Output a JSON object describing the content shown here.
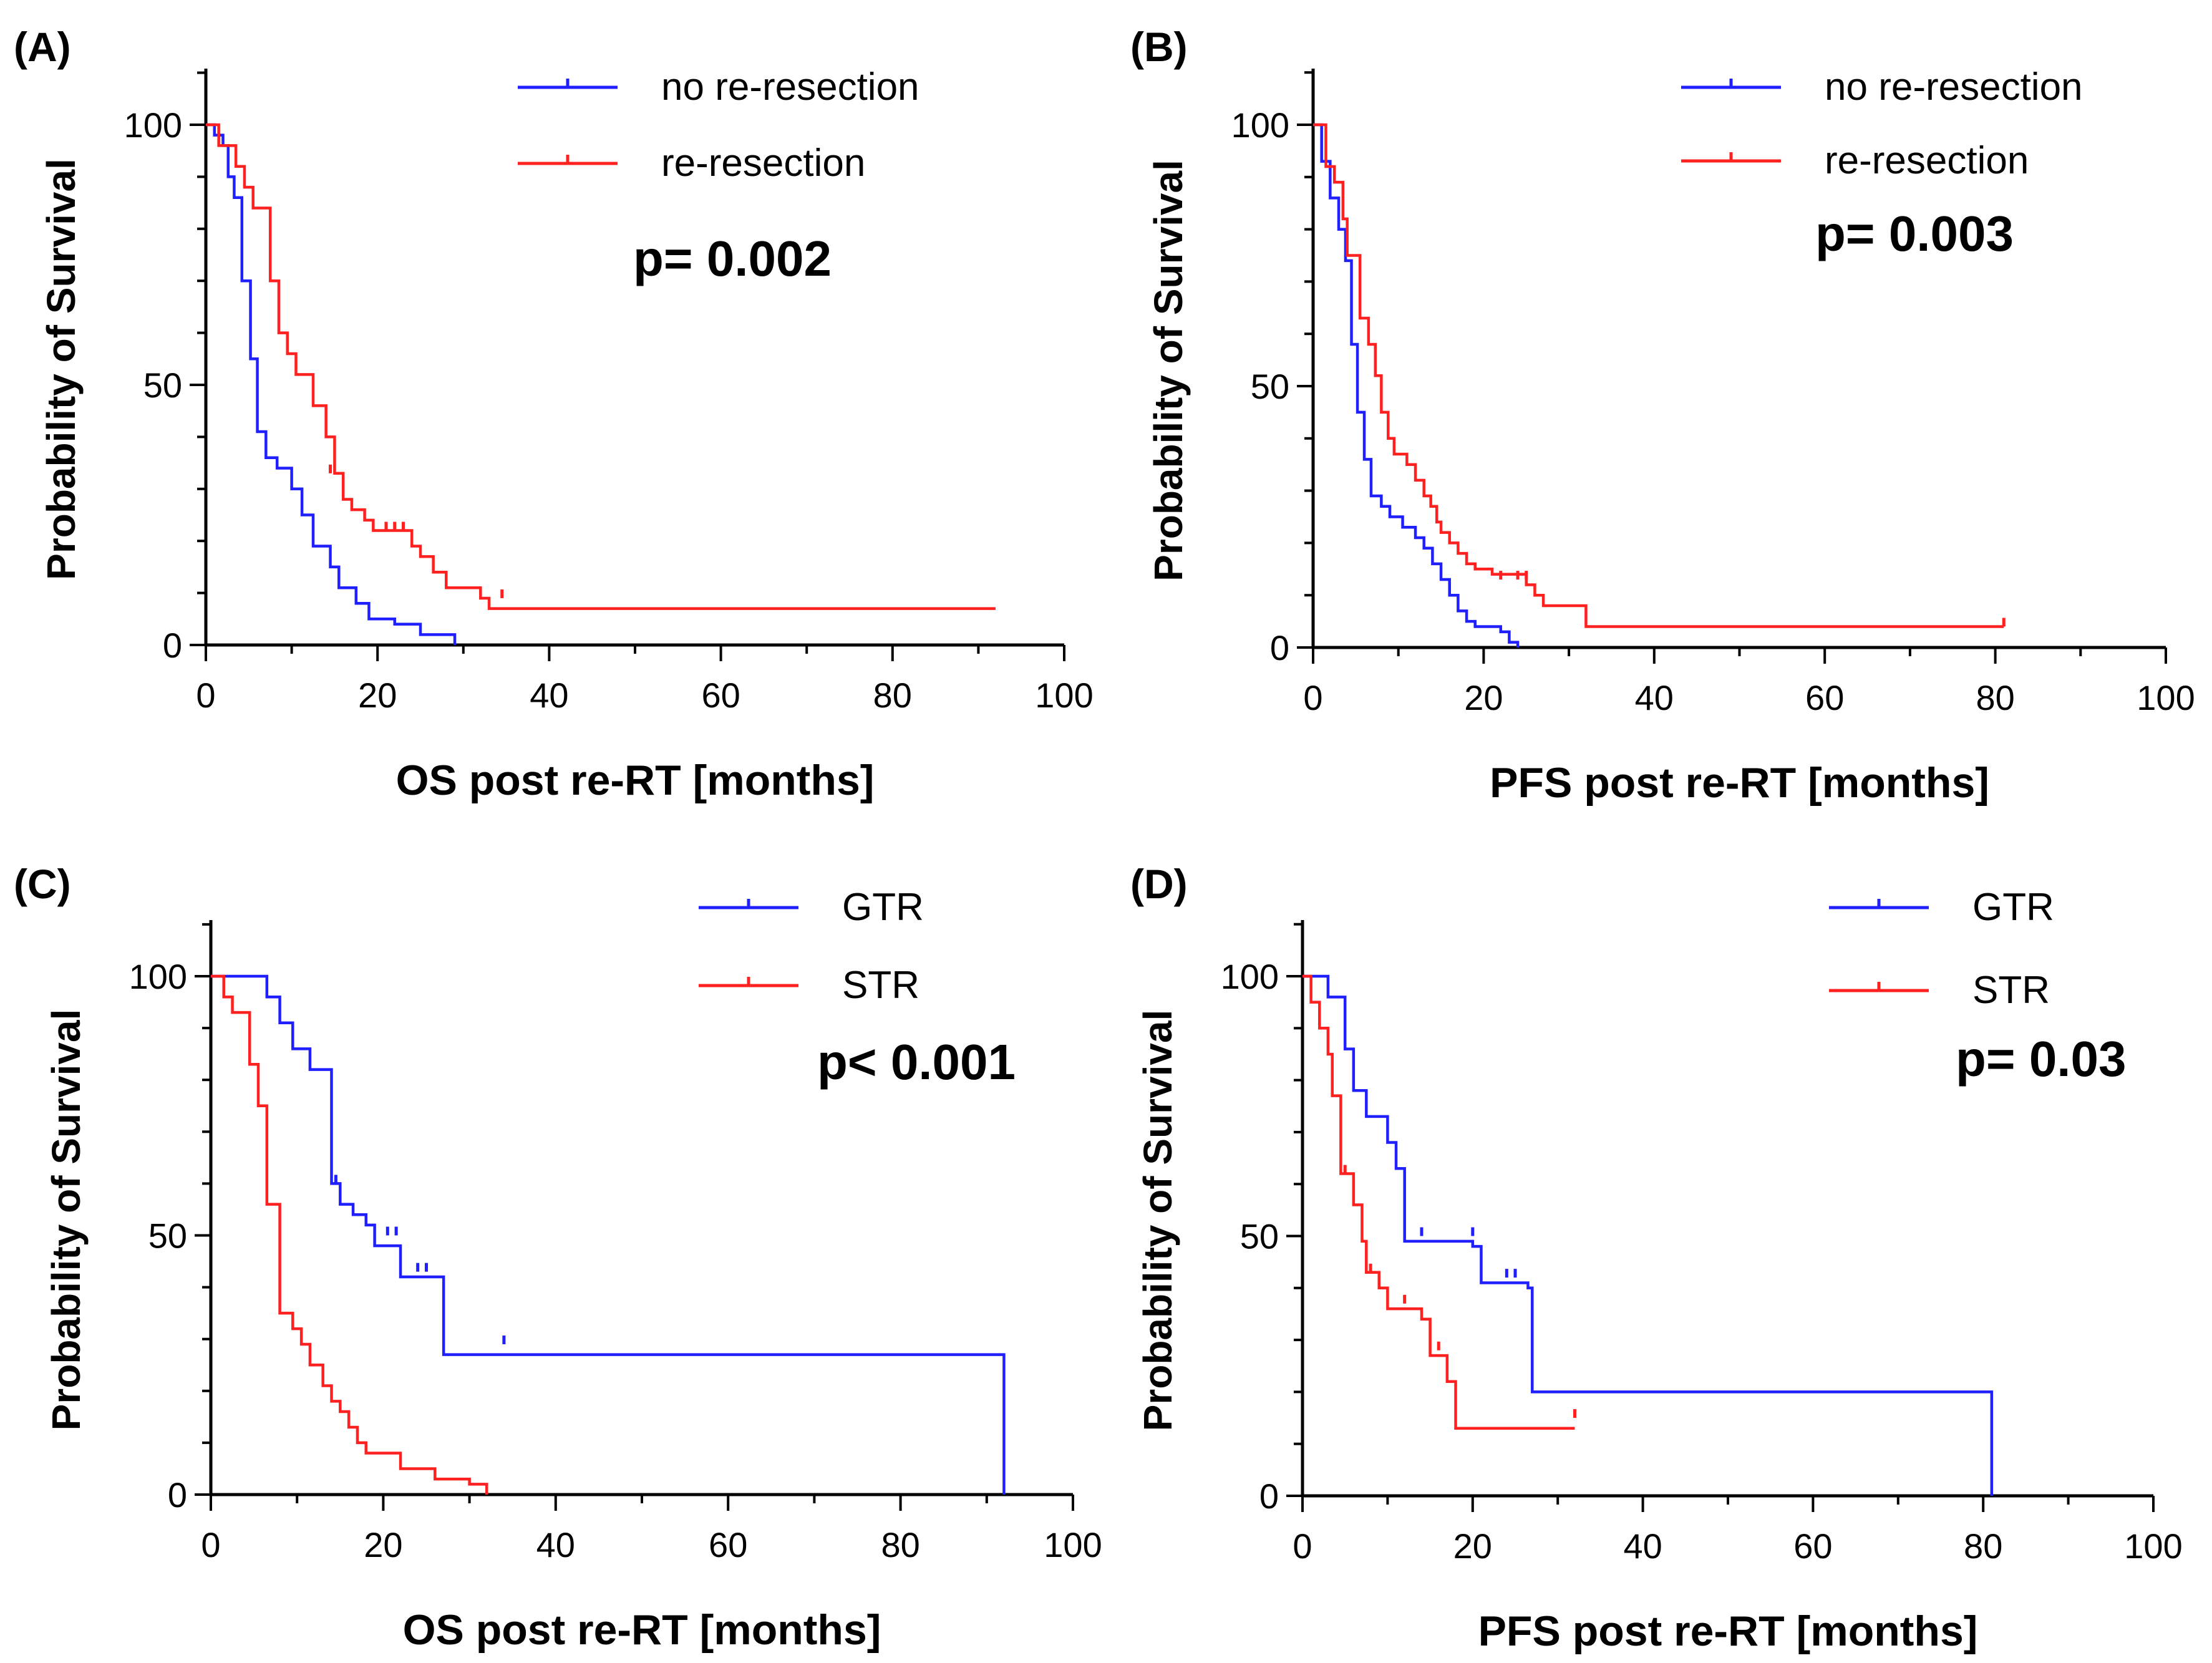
{
  "colors": {
    "blue": "#1f1fff",
    "red": "#ff2020",
    "axis": "#000000"
  },
  "chart_data": [
    {
      "type": "line",
      "subtype": "kaplan-meier",
      "panel": "(A)",
      "xlabel": "OS post re-RT [months]",
      "ylabel": "Probability of Survival",
      "xlim": [
        0,
        100
      ],
      "ylim": [
        0,
        100
      ],
      "xticks": [
        0,
        20,
        40,
        60,
        80,
        100
      ],
      "yticks": [
        0,
        50,
        100
      ],
      "p_value": "p= 0.002",
      "legend_position": "top-right",
      "series": [
        {
          "name": "no re-resection",
          "color": "blue",
          "steps": [
            [
              0,
              100
            ],
            [
              1,
              98
            ],
            [
              2,
              96
            ],
            [
              2.6,
              90
            ],
            [
              3.3,
              86
            ],
            [
              4.2,
              70
            ],
            [
              5.2,
              55
            ],
            [
              6,
              41
            ],
            [
              7,
              36
            ],
            [
              8.3,
              34
            ],
            [
              10,
              30
            ],
            [
              11.2,
              25
            ],
            [
              12.5,
              19
            ],
            [
              14.5,
              15
            ],
            [
              15.5,
              11
            ],
            [
              17.5,
              8
            ],
            [
              19,
              5
            ],
            [
              22,
              4
            ],
            [
              25,
              2
            ],
            [
              29,
              0
            ]
          ],
          "end": 29,
          "censor": []
        },
        {
          "name": "re-resection",
          "color": "red",
          "steps": [
            [
              0,
              100
            ],
            [
              1.5,
              96
            ],
            [
              3.5,
              92
            ],
            [
              4.5,
              88
            ],
            [
              5.5,
              84
            ],
            [
              7.5,
              70
            ],
            [
              8.5,
              60
            ],
            [
              9.5,
              56
            ],
            [
              10.5,
              52
            ],
            [
              12.5,
              46
            ],
            [
              14,
              40
            ],
            [
              15,
              33
            ],
            [
              16,
              28
            ],
            [
              17,
              26
            ],
            [
              18.5,
              24
            ],
            [
              19.5,
              22
            ],
            [
              24,
              19
            ],
            [
              25,
              17
            ],
            [
              26.5,
              14
            ],
            [
              28,
              11
            ],
            [
              32,
              9
            ],
            [
              33,
              7
            ]
          ],
          "end": 92,
          "censor": [
            [
              14.5,
              33
            ],
            [
              21,
              22
            ],
            [
              22,
              22
            ],
            [
              23,
              22
            ],
            [
              34.5,
              9
            ]
          ]
        }
      ]
    },
    {
      "type": "line",
      "subtype": "kaplan-meier",
      "panel": "(B)",
      "xlabel": "PFS post re-RT [months]",
      "ylabel": "Probability of Survival",
      "xlim": [
        0,
        100
      ],
      "ylim": [
        0,
        100
      ],
      "xticks": [
        0,
        20,
        40,
        60,
        80,
        100
      ],
      "yticks": [
        0,
        50,
        100
      ],
      "p_value": "p= 0.003",
      "legend_position": "top-right",
      "series": [
        {
          "name": "no re-resection",
          "color": "blue",
          "steps": [
            [
              0,
              100
            ],
            [
              1,
              93
            ],
            [
              2,
              86
            ],
            [
              3,
              80
            ],
            [
              3.8,
              74
            ],
            [
              4.5,
              58
            ],
            [
              5.2,
              45
            ],
            [
              6,
              36
            ],
            [
              6.8,
              29
            ],
            [
              8,
              27
            ],
            [
              9,
              25
            ],
            [
              10.5,
              23
            ],
            [
              12,
              21
            ],
            [
              13,
              19
            ],
            [
              14,
              16
            ],
            [
              15,
              13
            ],
            [
              16,
              10
            ],
            [
              17,
              7
            ],
            [
              18,
              5
            ],
            [
              19,
              4
            ],
            [
              22,
              3
            ],
            [
              23,
              1
            ],
            [
              24,
              0
            ]
          ],
          "end": 24,
          "censor": []
        },
        {
          "name": "re-resection",
          "color": "red",
          "steps": [
            [
              0,
              100
            ],
            [
              1.5,
              92
            ],
            [
              2.5,
              89
            ],
            [
              3.5,
              82
            ],
            [
              4,
              75
            ],
            [
              5.5,
              63
            ],
            [
              6.5,
              58
            ],
            [
              7.3,
              52
            ],
            [
              8,
              45
            ],
            [
              8.8,
              40
            ],
            [
              9.5,
              37
            ],
            [
              11,
              35
            ],
            [
              12,
              32
            ],
            [
              13,
              29
            ],
            [
              13.8,
              27
            ],
            [
              14.5,
              24
            ],
            [
              15,
              22
            ],
            [
              16,
              20
            ],
            [
              17,
              18
            ],
            [
              18,
              16
            ],
            [
              19,
              15
            ],
            [
              21,
              14
            ],
            [
              25,
              12
            ],
            [
              26,
              10
            ],
            [
              27,
              8
            ],
            [
              32,
              4
            ]
          ],
          "end": 81,
          "censor": [
            [
              22,
              13
            ],
            [
              24,
              13
            ],
            [
              25,
              13
            ],
            [
              81,
              4
            ]
          ]
        }
      ]
    },
    {
      "type": "line",
      "subtype": "kaplan-meier",
      "panel": "(C)",
      "xlabel": "OS post re-RT [months]",
      "ylabel": "Probability of Survival",
      "xlim": [
        0,
        100
      ],
      "ylim": [
        0,
        100
      ],
      "xticks": [
        0,
        20,
        40,
        60,
        80,
        100
      ],
      "yticks": [
        0,
        50,
        100
      ],
      "p_value": "p< 0.001",
      "legend_position": "top-right",
      "series": [
        {
          "name": "GTR",
          "color": "blue",
          "steps": [
            [
              0,
              100
            ],
            [
              6.5,
              96
            ],
            [
              8,
              91
            ],
            [
              9.5,
              86
            ],
            [
              11.5,
              82
            ],
            [
              14,
              60
            ],
            [
              15,
              56
            ],
            [
              16.5,
              54
            ],
            [
              18,
              52
            ],
            [
              19,
              48
            ],
            [
              22,
              42
            ],
            [
              27,
              27
            ],
            [
              92,
              0
            ]
          ],
          "end": 92,
          "censor": [
            [
              14.5,
              60
            ],
            [
              20.5,
              50
            ],
            [
              21.5,
              50
            ],
            [
              24,
              43
            ],
            [
              25,
              43
            ],
            [
              34,
              29
            ]
          ]
        },
        {
          "name": "STR",
          "color": "red",
          "steps": [
            [
              0,
              100
            ],
            [
              1.5,
              96
            ],
            [
              2.5,
              93
            ],
            [
              4.5,
              83
            ],
            [
              5.5,
              75
            ],
            [
              6.5,
              56
            ],
            [
              8,
              35
            ],
            [
              9.5,
              32
            ],
            [
              10.5,
              29
            ],
            [
              11.5,
              25
            ],
            [
              13,
              21
            ],
            [
              14,
              18
            ],
            [
              15,
              16
            ],
            [
              16,
              13
            ],
            [
              17,
              10
            ],
            [
              18,
              8
            ],
            [
              22,
              5
            ],
            [
              26,
              3
            ],
            [
              30,
              2
            ],
            [
              32,
              0
            ]
          ],
          "end": 32,
          "censor": []
        }
      ]
    },
    {
      "type": "line",
      "subtype": "kaplan-meier",
      "panel": "(D)",
      "xlabel": "PFS post re-RT [months]",
      "ylabel": "Probability of Survival",
      "xlim": [
        0,
        100
      ],
      "ylim": [
        0,
        100
      ],
      "xticks": [
        0,
        20,
        40,
        60,
        80,
        100
      ],
      "yticks": [
        0,
        50,
        100
      ],
      "p_value": "p= 0.03",
      "legend_position": "top-right",
      "series": [
        {
          "name": "GTR",
          "color": "blue",
          "steps": [
            [
              0,
              100
            ],
            [
              3,
              96
            ],
            [
              5,
              86
            ],
            [
              6,
              78
            ],
            [
              7.5,
              73
            ],
            [
              10,
              68
            ],
            [
              11,
              63
            ],
            [
              12,
              49
            ],
            [
              20,
              48
            ],
            [
              21,
              41
            ],
            [
              26.5,
              40
            ],
            [
              27,
              20
            ],
            [
              81,
              0
            ]
          ],
          "end": 81,
          "censor": [
            [
              14,
              50
            ],
            [
              20,
              50
            ],
            [
              24,
              42
            ],
            [
              25,
              42
            ]
          ]
        },
        {
          "name": "STR",
          "color": "red",
          "steps": [
            [
              0,
              100
            ],
            [
              1,
              95
            ],
            [
              2,
              90
            ],
            [
              3,
              85
            ],
            [
              3.5,
              77
            ],
            [
              4.5,
              62
            ],
            [
              6,
              56
            ],
            [
              7,
              49
            ],
            [
              7.5,
              43
            ],
            [
              9,
              40
            ],
            [
              10,
              36
            ],
            [
              14,
              34
            ],
            [
              15,
              27
            ],
            [
              17,
              22
            ],
            [
              18,
              13
            ]
          ],
          "end": 32,
          "censor": [
            [
              5,
              62
            ],
            [
              8,
              43
            ],
            [
              12,
              37
            ],
            [
              16,
              28
            ],
            [
              32,
              15
            ]
          ]
        }
      ]
    }
  ]
}
